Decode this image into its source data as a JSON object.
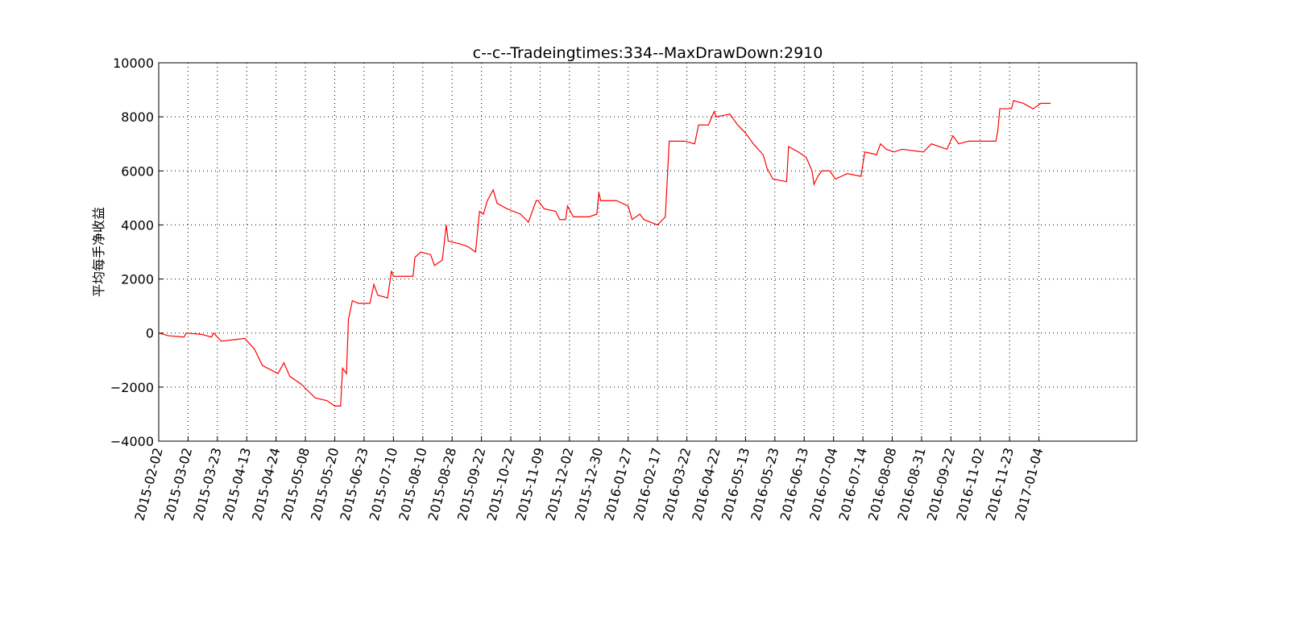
{
  "chart_data": {
    "type": "line",
    "title": "c--c--Tradeingtimes:334--MaxDrawDown:2910",
    "y_label": "平均每手净收益",
    "grid": true,
    "xlim": [
      0,
      500
    ],
    "ylim": [
      -4000,
      10000
    ],
    "yticks": [
      {
        "value": -4000,
        "label": "−4000"
      },
      {
        "value": -2000,
        "label": "−2000"
      },
      0,
      2000,
      4000,
      6000,
      8000,
      10000
    ],
    "xticks": [
      {
        "value": 0,
        "label": "2015-02-02"
      },
      {
        "value": 15,
        "label": "2015-03-02"
      },
      {
        "value": 30,
        "label": "2015-03-23"
      },
      {
        "value": 45,
        "label": "2015-04-13"
      },
      {
        "value": 60,
        "label": "2015-04-24"
      },
      {
        "value": 75,
        "label": "2015-05-08"
      },
      {
        "value": 90,
        "label": "2015-05-20"
      },
      {
        "value": 105,
        "label": "2015-06-23"
      },
      {
        "value": 120,
        "label": "2015-07-10"
      },
      {
        "value": 135,
        "label": "2015-08-10"
      },
      {
        "value": 150,
        "label": "2015-08-28"
      },
      {
        "value": 165,
        "label": "2015-09-22"
      },
      {
        "value": 180,
        "label": "2015-10-22"
      },
      {
        "value": 195,
        "label": "2015-11-09"
      },
      {
        "value": 210,
        "label": "2015-12-02"
      },
      {
        "value": 225,
        "label": "2015-12-30"
      },
      {
        "value": 240,
        "label": "2016-01-27"
      },
      {
        "value": 255,
        "label": "2016-02-17"
      },
      {
        "value": 270,
        "label": "2016-03-22"
      },
      {
        "value": 285,
        "label": "2016-04-22"
      },
      {
        "value": 300,
        "label": "2016-05-13"
      },
      {
        "value": 315,
        "label": "2016-05-23"
      },
      {
        "value": 330,
        "label": "2016-06-13"
      },
      {
        "value": 345,
        "label": "2016-07-04"
      },
      {
        "value": 360,
        "label": "2016-07-14"
      },
      {
        "value": 375,
        "label": "2016-08-08"
      },
      {
        "value": 390,
        "label": "2016-08-31"
      },
      {
        "value": 405,
        "label": "2016-09-22"
      },
      {
        "value": 420,
        "label": "2016-11-02"
      },
      {
        "value": 435,
        "label": "2016-11-23"
      },
      {
        "value": 450,
        "label": "2017-01-04"
      }
    ],
    "series": [
      {
        "color": "#ff0000",
        "x": [
          0,
          5,
          13,
          14,
          22,
          27,
          28,
          32,
          38,
          44,
          49,
          53,
          61,
          64,
          67,
          73,
          80,
          86,
          90,
          93,
          94,
          96,
          97,
          99,
          102,
          108,
          110,
          112,
          117,
          119,
          120,
          125,
          130,
          131,
          134,
          139,
          141,
          145,
          147,
          148,
          154,
          158,
          162,
          164,
          166,
          168,
          171,
          173,
          178,
          185,
          189,
          193,
          194,
          197,
          203,
          205,
          208,
          209,
          212,
          220,
          224,
          225,
          226,
          234,
          240,
          242,
          246,
          248,
          255,
          259,
          261,
          265,
          269,
          274,
          276,
          281,
          284,
          285,
          292,
          296,
          300,
          304,
          309,
          311,
          314,
          321,
          322,
          327,
          331,
          334,
          335,
          337,
          339,
          343,
          346,
          349,
          352,
          359,
          361,
          367,
          369,
          372,
          376,
          380,
          391,
          395,
          399,
          403,
          406,
          409,
          414,
          419,
          428,
          429,
          430,
          436,
          437,
          442,
          447,
          451,
          456
        ],
        "values": [
          0,
          -100,
          -150,
          0,
          -50,
          -150,
          0,
          -300,
          -250,
          -200,
          -600,
          -1200,
          -1500,
          -1100,
          -1600,
          -1900,
          -2400,
          -2500,
          -2700,
          -2700,
          -1300,
          -1500,
          500,
          1200,
          1100,
          1100,
          1800,
          1400,
          1300,
          2300,
          2100,
          2100,
          2100,
          2800,
          3000,
          2900,
          2500,
          2700,
          4000,
          3400,
          3300,
          3200,
          3000,
          4500,
          4400,
          4900,
          5300,
          4800,
          4600,
          4400,
          4100,
          4900,
          4900,
          4600,
          4500,
          4200,
          4200,
          4700,
          4300,
          4300,
          4400,
          5200,
          4900,
          4900,
          4700,
          4200,
          4400,
          4200,
          4000,
          4300,
          7100,
          7100,
          7100,
          7000,
          7700,
          7700,
          8200,
          8000,
          8100,
          7700,
          7400,
          7000,
          6600,
          6100,
          5700,
          5600,
          6900,
          6700,
          6500,
          6000,
          5500,
          5800,
          6000,
          6000,
          5700,
          5800,
          5900,
          5800,
          6700,
          6600,
          7000,
          6800,
          6700,
          6800,
          6700,
          7000,
          6900,
          6800,
          7300,
          7000,
          7100,
          7100,
          7100,
          7500,
          8300,
          8300,
          8600,
          8500,
          8300,
          8500,
          8500
        ]
      }
    ]
  }
}
